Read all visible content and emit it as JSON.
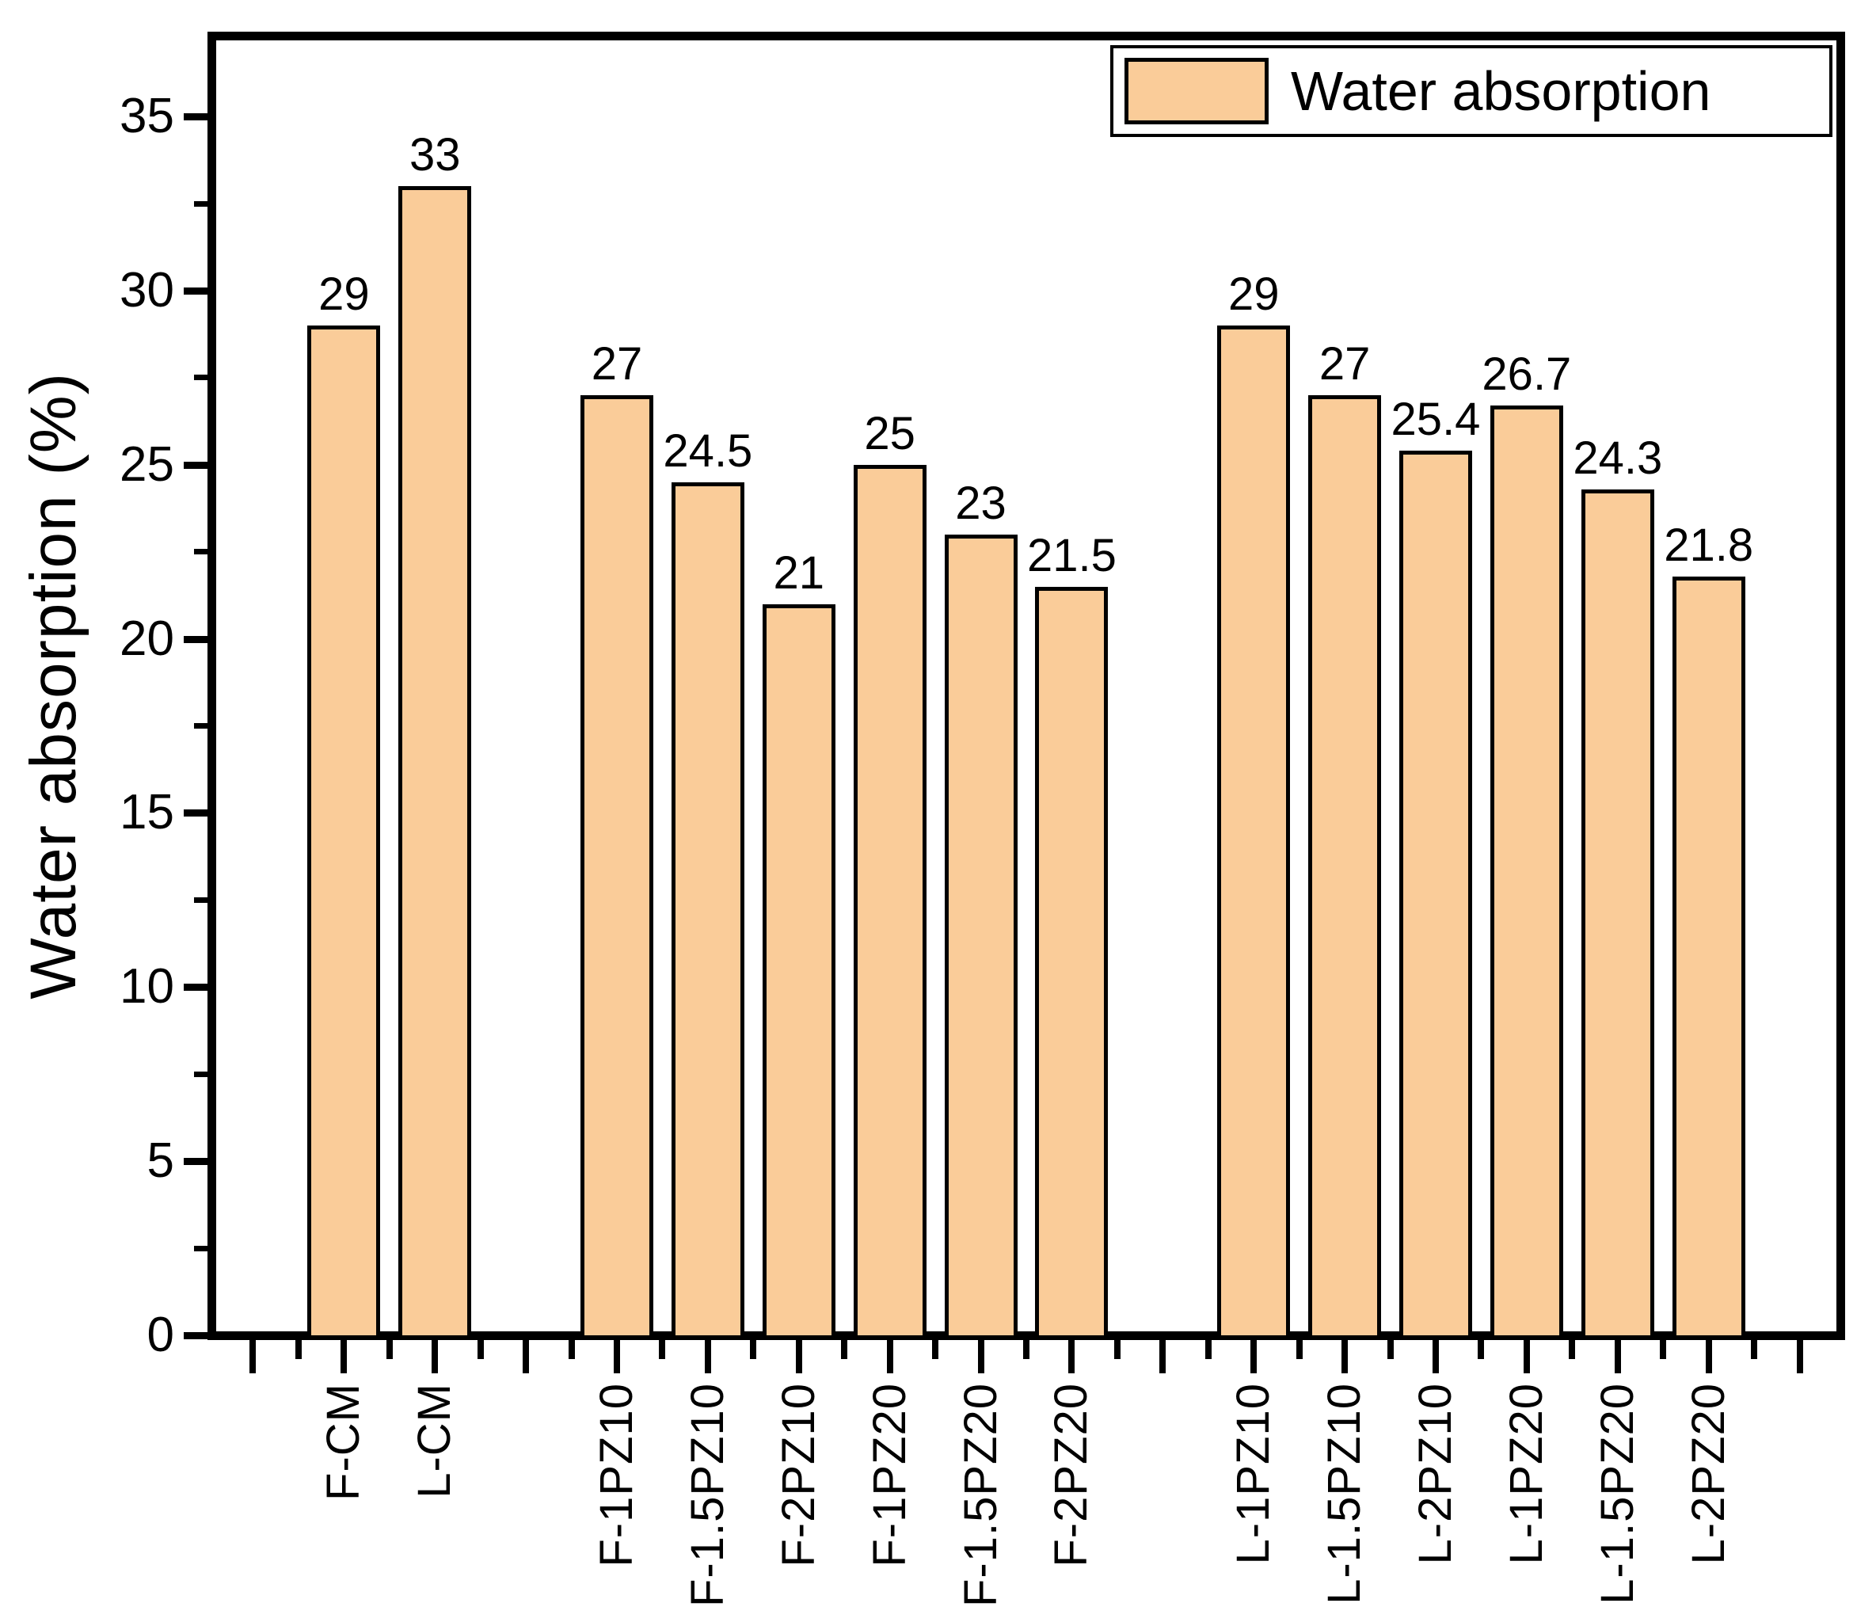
{
  "chart_data": {
    "type": "bar",
    "title": "",
    "ylabel": "Water absorption (%)",
    "xlabel": "",
    "legend": [
      {
        "label": "Water absorption",
        "color": "#FACC99"
      }
    ],
    "legend_position": "top-right",
    "grid": false,
    "ylim": [
      0,
      37.3
    ],
    "ytick_major": [
      0,
      5,
      10,
      15,
      20,
      25,
      30,
      35
    ],
    "ytick_minor": [
      2.5,
      7.5,
      12.5,
      17.5,
      22.5,
      27.5,
      32.5
    ],
    "bar_color": "#FACC99",
    "bar_border_color": "#000000",
    "categories": [
      "F-CM",
      "L-CM",
      "F-1PZ10",
      "F-1.5PZ10",
      "F-2PZ10",
      "F-1PZ20",
      "F-1.5PZ20",
      "F-2PZ20",
      "L-1PZ10",
      "L-1.5PZ10",
      "L-2PZ10",
      "L-1PZ20",
      "L-1.5PZ20",
      "L-2PZ20"
    ],
    "values": [
      29,
      33,
      27,
      24.5,
      21,
      25,
      23,
      21.5,
      29,
      27,
      25.4,
      26.7,
      24.3,
      21.8
    ],
    "slots": [
      1,
      2,
      4,
      5,
      6,
      7,
      8,
      9,
      11,
      12,
      13,
      14,
      15,
      16
    ],
    "total_slots": 18
  }
}
